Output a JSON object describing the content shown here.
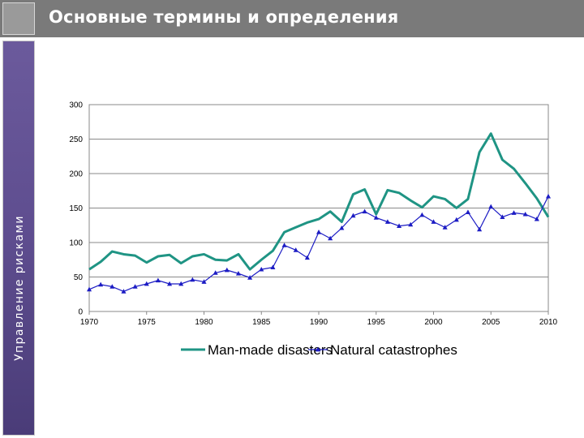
{
  "title": "Основные термины и определения",
  "sidebar_label": "Управление рисками",
  "colors": {
    "header_bg": "#7a7a7a",
    "sidebar_purple": "#5e4d8f",
    "series_manmade": "#1f9484",
    "series_natural": "#1c1cc4"
  },
  "chart_data": {
    "type": "line",
    "title": "",
    "xlabel": "",
    "ylabel": "",
    "xlim": [
      1970,
      2010
    ],
    "ylim": [
      0,
      300
    ],
    "x_ticks": [
      "1970",
      "1975",
      "1980",
      "1985",
      "1990",
      "1995",
      "2000",
      "2005",
      "2010"
    ],
    "y_ticks": [
      "0",
      "50",
      "100",
      "150",
      "200",
      "250",
      "300"
    ],
    "grid": "horizontal",
    "legend_position": "bottom",
    "x": [
      1970,
      1971,
      1972,
      1973,
      1974,
      1975,
      1976,
      1977,
      1978,
      1979,
      1980,
      1981,
      1982,
      1983,
      1984,
      1985,
      1986,
      1987,
      1988,
      1989,
      1990,
      1991,
      1992,
      1993,
      1994,
      1995,
      1996,
      1997,
      1998,
      1999,
      2000,
      2001,
      2002,
      2003,
      2004,
      2005,
      2006,
      2007,
      2008,
      2009,
      2010
    ],
    "series": [
      {
        "name": "Man-made disasters",
        "marker": "none",
        "values": [
          61,
          72,
          87,
          83,
          81,
          71,
          80,
          82,
          70,
          80,
          83,
          75,
          74,
          83,
          61,
          75,
          88,
          115,
          122,
          129,
          134,
          145,
          130,
          170,
          177,
          141,
          176,
          172,
          161,
          151,
          167,
          163,
          150,
          163,
          231,
          258,
          220,
          207,
          186,
          164,
          137
        ]
      },
      {
        "name": "Natural catastrophes",
        "marker": "triangle",
        "values": [
          32,
          39,
          36,
          29,
          36,
          40,
          45,
          40,
          40,
          46,
          43,
          56,
          60,
          55,
          49,
          61,
          64,
          96,
          89,
          78,
          115,
          106,
          121,
          139,
          145,
          136,
          130,
          124,
          126,
          140,
          130,
          122,
          133,
          144,
          119,
          152,
          137,
          143,
          141,
          134,
          167
        ]
      }
    ]
  }
}
